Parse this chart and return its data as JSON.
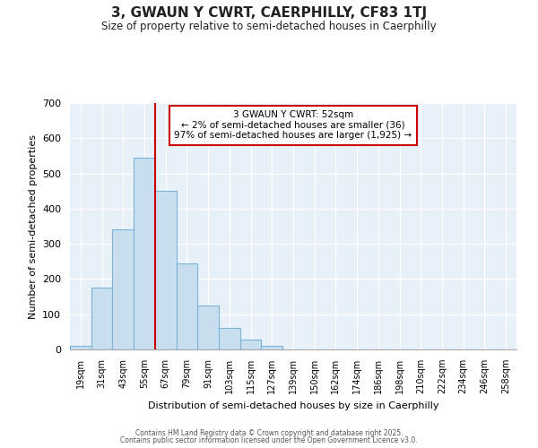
{
  "title": "3, GWAUN Y CWRT, CAERPHILLY, CF83 1TJ",
  "subtitle": "Size of property relative to semi-detached houses in Caerphilly",
  "xlabel": "Distribution of semi-detached houses by size in Caerphilly",
  "ylabel": "Number of semi-detached properties",
  "bar_labels": [
    "19sqm",
    "31sqm",
    "43sqm",
    "55sqm",
    "67sqm",
    "79sqm",
    "91sqm",
    "103sqm",
    "115sqm",
    "127sqm",
    "139sqm",
    "150sqm",
    "162sqm",
    "174sqm",
    "186sqm",
    "198sqm",
    "210sqm",
    "222sqm",
    "234sqm",
    "246sqm",
    "258sqm"
  ],
  "bar_values": [
    10,
    175,
    340,
    545,
    450,
    245,
    125,
    60,
    28,
    10,
    0,
    0,
    0,
    0,
    0,
    0,
    0,
    0,
    0,
    0,
    0
  ],
  "bar_color": "#c9dff0",
  "bar_edge_color": "#7ab4d8",
  "vline_x_idx": 3.5,
  "vline_color": "#cc0000",
  "annotation_text": "3 GWAUN Y CWRT: 52sqm\n← 2% of semi-detached houses are smaller (36)\n97% of semi-detached houses are larger (1,925) →",
  "annotation_box_facecolor": "#ffffff",
  "annotation_border_color": "#cc0000",
  "ylim": [
    0,
    700
  ],
  "yticks": [
    0,
    100,
    200,
    300,
    400,
    500,
    600,
    700
  ],
  "bg_color": "#ffffff",
  "plot_bg_color": "#e8f0f8",
  "grid_color": "#ffffff",
  "footer1": "Contains HM Land Registry data © Crown copyright and database right 2025.",
  "footer2": "Contains public sector information licensed under the Open Government Licence v3.0."
}
